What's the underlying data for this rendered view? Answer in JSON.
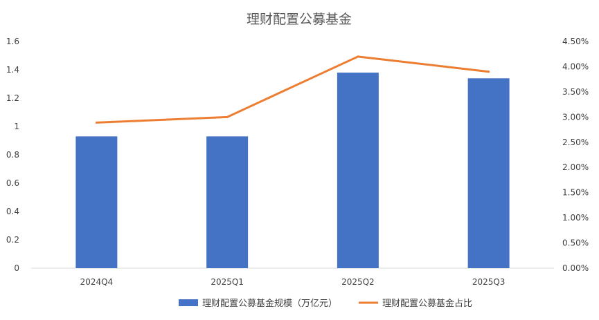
{
  "chart_data": {
    "type": "bar+line",
    "title": "理财配置公募基金",
    "categories": [
      "2024Q4",
      "2025Q1",
      "2025Q2",
      "2025Q3"
    ],
    "series": [
      {
        "name": "理财配置公募基金规模（万亿元）",
        "type": "bar",
        "axis": "left",
        "color": "#4472C4",
        "values": [
          0.93,
          0.93,
          1.38,
          1.34
        ]
      },
      {
        "name": "理财配置公募基金占比",
        "type": "line",
        "axis": "right",
        "color": "#ED7D31",
        "values": [
          2.89,
          3.0,
          4.2,
          3.9
        ]
      }
    ],
    "y_left": {
      "min": 0,
      "max": 1.6,
      "ticks": [
        "0",
        "0.2",
        "0.4",
        "0.6",
        "0.8",
        "1",
        "1.2",
        "1.4",
        "1.6"
      ]
    },
    "y_right": {
      "min": 0,
      "max": 4.5,
      "unit": "%",
      "ticks": [
        "0.00%",
        "0.50%",
        "1.00%",
        "1.50%",
        "2.00%",
        "2.50%",
        "3.00%",
        "3.50%",
        "4.00%",
        "4.50%"
      ]
    },
    "grid": false,
    "legend_position": "bottom"
  }
}
